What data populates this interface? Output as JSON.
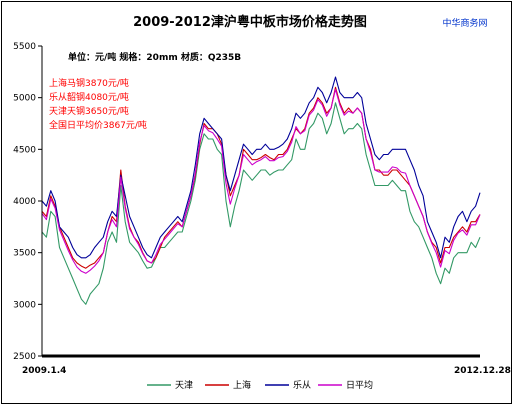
{
  "chart_data": {
    "type": "line",
    "title": "2009-2012津沪粤中板市场价格走势图",
    "brand": "中华商务网",
    "subtitle": "单位：元/吨 规格：20mm 材质：Q235B",
    "ylim": [
      2500,
      5500
    ],
    "yticks": [
      2500,
      3000,
      3500,
      4000,
      4500,
      5000,
      5500
    ],
    "xlim": [
      0,
      100
    ],
    "x_start_label": "2009.1.4",
    "x_end_label": "2012.12.28",
    "grid": false,
    "legend_position": "bottom",
    "annotations": [
      "上海马钢3870元/吨",
      "乐从韶钢4080元/吨",
      "天津天钢3650元/吨",
      "全国日平均价3867元/吨"
    ],
    "x": [
      0,
      1,
      2,
      3,
      4,
      5,
      6,
      7,
      8,
      9,
      10,
      11,
      12,
      13,
      14,
      15,
      16,
      17,
      18,
      19,
      20,
      21,
      22,
      23,
      24,
      25,
      26,
      27,
      28,
      29,
      30,
      31,
      32,
      33,
      34,
      35,
      36,
      37,
      38,
      39,
      40,
      41,
      42,
      43,
      44,
      45,
      46,
      47,
      48,
      49,
      50,
      51,
      52,
      53,
      54,
      55,
      56,
      57,
      58,
      59,
      60,
      61,
      62,
      63,
      64,
      65,
      66,
      67,
      68,
      69,
      70,
      71,
      72,
      73,
      74,
      75,
      76,
      77,
      78,
      79,
      80,
      81,
      82,
      83,
      84,
      85,
      86,
      87,
      88,
      89,
      90,
      91,
      92,
      93,
      94,
      95,
      96,
      97,
      98,
      99,
      100
    ],
    "series": [
      {
        "name": "天津",
        "color": "#339966",
        "values": [
          3700,
          3650,
          3900,
          3850,
          3550,
          3450,
          3350,
          3250,
          3150,
          3050,
          3000,
          3100,
          3150,
          3200,
          3350,
          3600,
          3700,
          3600,
          4150,
          3800,
          3600,
          3550,
          3500,
          3420,
          3350,
          3360,
          3450,
          3550,
          3550,
          3600,
          3650,
          3700,
          3700,
          3850,
          4000,
          4200,
          4500,
          4650,
          4600,
          4600,
          4500,
          4450,
          4000,
          3750,
          3950,
          4100,
          4300,
          4250,
          4200,
          4250,
          4300,
          4300,
          4250,
          4280,
          4300,
          4300,
          4350,
          4400,
          4600,
          4500,
          4500,
          4700,
          4750,
          4850,
          4800,
          4650,
          4750,
          4950,
          4800,
          4650,
          4700,
          4700,
          4750,
          4700,
          4450,
          4300,
          4150,
          4150,
          4150,
          4150,
          4200,
          4150,
          4100,
          4100,
          3900,
          3800,
          3750,
          3650,
          3550,
          3450,
          3300,
          3200,
          3350,
          3300,
          3450,
          3500,
          3500,
          3500,
          3600,
          3550,
          3650
        ]
      },
      {
        "name": "上海",
        "color": "#cc0000",
        "values": [
          3900,
          3850,
          4050,
          3950,
          3750,
          3650,
          3550,
          3450,
          3400,
          3370,
          3350,
          3380,
          3400,
          3450,
          3500,
          3700,
          3850,
          3800,
          4300,
          3950,
          3750,
          3650,
          3600,
          3500,
          3420,
          3400,
          3450,
          3550,
          3650,
          3700,
          3750,
          3800,
          3750,
          3900,
          4050,
          4250,
          4550,
          4750,
          4700,
          4700,
          4650,
          4550,
          4250,
          4050,
          4150,
          4250,
          4500,
          4450,
          4400,
          4400,
          4420,
          4450,
          4420,
          4400,
          4450,
          4450,
          4500,
          4600,
          4700,
          4650,
          4700,
          4850,
          4900,
          5000,
          4950,
          4850,
          4900,
          5100,
          4950,
          4850,
          4900,
          4850,
          4900,
          4850,
          4600,
          4500,
          4300,
          4300,
          4250,
          4250,
          4300,
          4300,
          4250,
          4200,
          4150,
          4050,
          3950,
          3850,
          3700,
          3600,
          3550,
          3400,
          3550,
          3550,
          3650,
          3700,
          3750,
          3700,
          3800,
          3800,
          3870
        ]
      },
      {
        "name": "乐从",
        "color": "#000099",
        "values": [
          4000,
          3950,
          4100,
          4000,
          3750,
          3700,
          3650,
          3550,
          3480,
          3450,
          3450,
          3480,
          3550,
          3600,
          3650,
          3800,
          3900,
          3850,
          4250,
          4050,
          3850,
          3750,
          3650,
          3550,
          3480,
          3450,
          3550,
          3650,
          3700,
          3750,
          3800,
          3850,
          3800,
          3950,
          4100,
          4350,
          4650,
          4800,
          4750,
          4700,
          4650,
          4600,
          4250,
          4100,
          4250,
          4400,
          4550,
          4500,
          4450,
          4500,
          4500,
          4550,
          4500,
          4500,
          4520,
          4550,
          4600,
          4700,
          4850,
          4800,
          4850,
          4950,
          5000,
          5100,
          5050,
          4950,
          5050,
          5200,
          5050,
          5000,
          5000,
          5000,
          5050,
          5000,
          4750,
          4600,
          4450,
          4400,
          4450,
          4450,
          4500,
          4500,
          4500,
          4500,
          4400,
          4300,
          4150,
          4050,
          3800,
          3700,
          3600,
          3450,
          3650,
          3600,
          3750,
          3850,
          3900,
          3800,
          3900,
          3950,
          4080
        ]
      },
      {
        "name": "日平均",
        "color": "#cc00cc",
        "values": [
          3880,
          3820,
          4020,
          3930,
          3720,
          3620,
          3520,
          3430,
          3360,
          3320,
          3300,
          3330,
          3370,
          3420,
          3500,
          3700,
          3820,
          3750,
          4230,
          3930,
          3730,
          3650,
          3580,
          3490,
          3420,
          3400,
          3480,
          3580,
          3630,
          3680,
          3730,
          3780,
          3750,
          3900,
          4050,
          4270,
          4570,
          4730,
          4680,
          4660,
          4600,
          4530,
          4170,
          3970,
          4120,
          4250,
          4450,
          4400,
          4350,
          4380,
          4400,
          4430,
          4390,
          4390,
          4420,
          4430,
          4480,
          4570,
          4720,
          4650,
          4680,
          4830,
          4880,
          4980,
          4930,
          4820,
          4900,
          5080,
          4930,
          4830,
          4870,
          4850,
          4900,
          4850,
          4600,
          4470,
          4300,
          4280,
          4280,
          4280,
          4330,
          4320,
          4280,
          4270,
          4150,
          4050,
          3950,
          3850,
          3700,
          3590,
          3500,
          3360,
          3520,
          3490,
          3620,
          3690,
          3720,
          3670,
          3770,
          3770,
          3867
        ]
      }
    ]
  }
}
